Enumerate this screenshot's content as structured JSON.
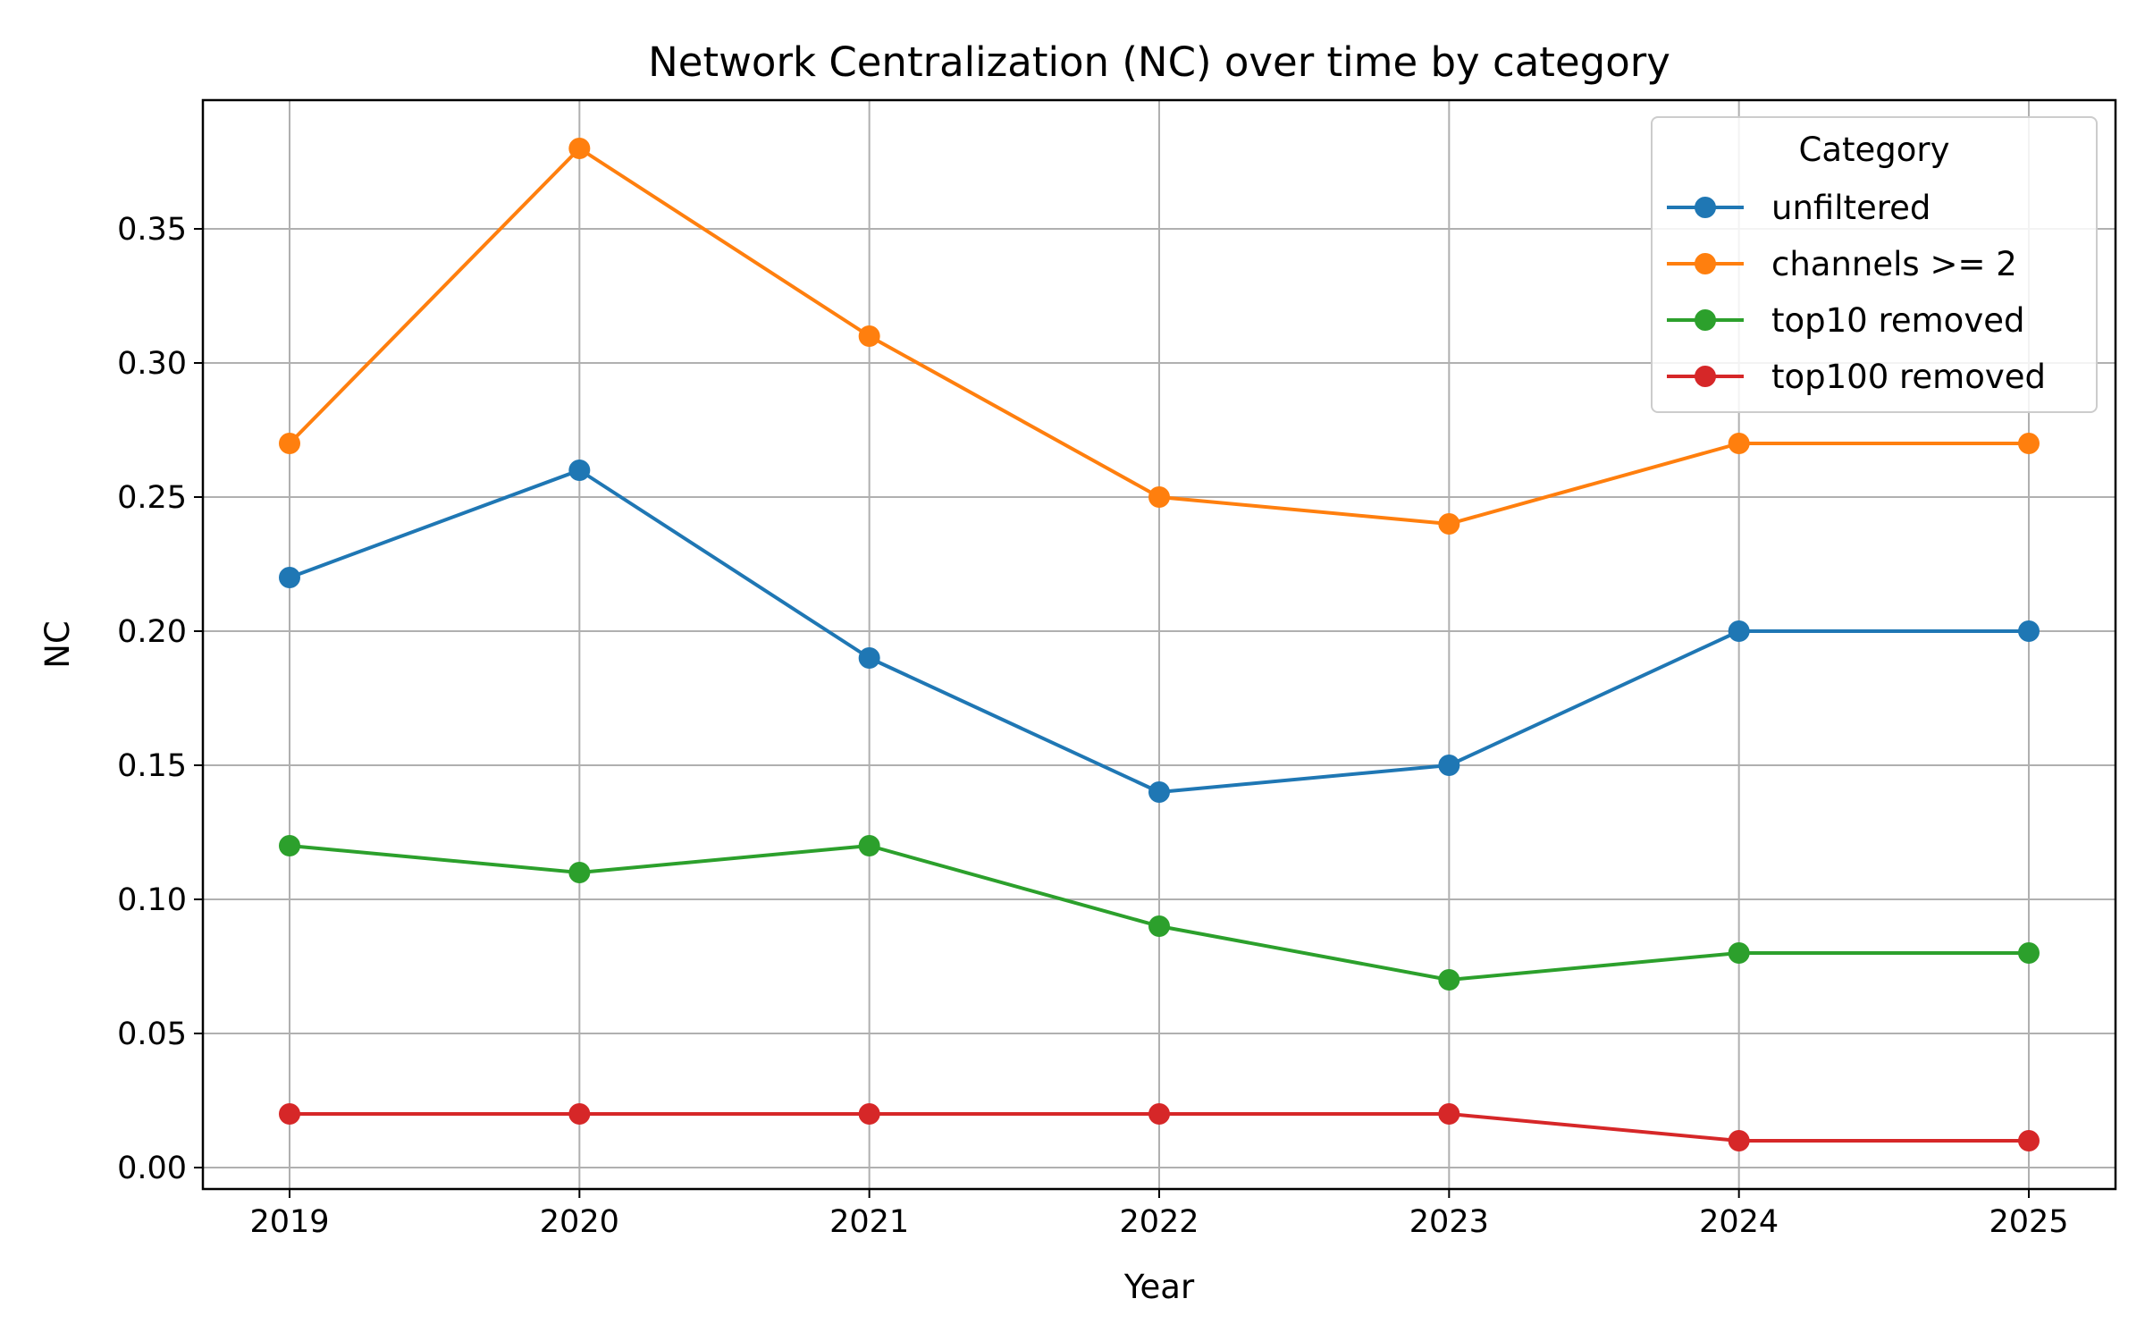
{
  "chart_data": {
    "type": "line",
    "title": "Network Centralization (NC) over time by category",
    "xlabel": "Year",
    "ylabel": "NC",
    "x": [
      "2019",
      "2020",
      "2021",
      "2022",
      "2023",
      "2024",
      "2025"
    ],
    "yticks": [
      "0.00",
      "0.05",
      "0.10",
      "0.15",
      "0.20",
      "0.25",
      "0.30",
      "0.35"
    ],
    "ylim": [
      -0.008,
      0.398
    ],
    "grid": true,
    "legend": {
      "title": "Category",
      "placement": "top-right"
    },
    "series": [
      {
        "name": "unfiltered",
        "color": "#1f77b4",
        "values": [
          0.22,
          0.26,
          0.19,
          0.14,
          0.15,
          0.2,
          0.2
        ]
      },
      {
        "name": "channels >= 2",
        "color": "#ff7f0e",
        "values": [
          0.27,
          0.38,
          0.31,
          0.25,
          0.24,
          0.27,
          0.27
        ]
      },
      {
        "name": "top10 removed",
        "color": "#2ca02c",
        "values": [
          0.12,
          0.11,
          0.12,
          0.09,
          0.07,
          0.08,
          0.08
        ]
      },
      {
        "name": "top100 removed",
        "color": "#d62728",
        "values": [
          0.02,
          0.02,
          0.02,
          0.02,
          0.02,
          0.01,
          0.01
        ]
      }
    ]
  }
}
